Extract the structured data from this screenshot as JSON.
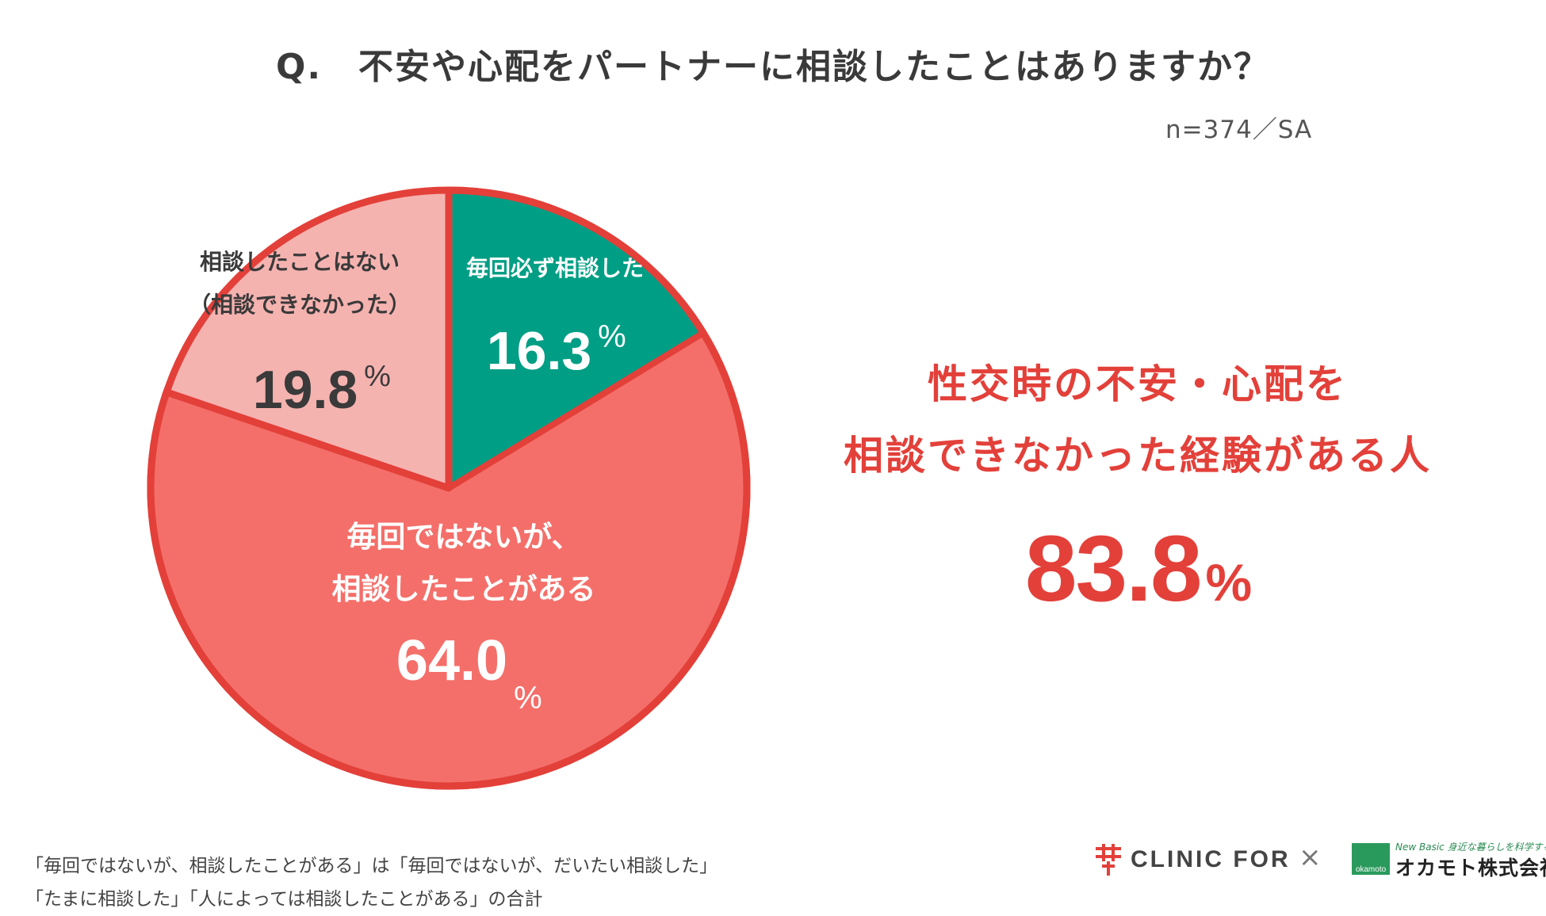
{
  "title": "Q.　不安や心配をパートナーに相談したことはありますか？",
  "sample_note": "n=374／SA",
  "chart_data": {
    "type": "pie",
    "title": "不安や心配をパートナーに相談したことはありますか？",
    "unit": "%",
    "slices": [
      {
        "label_lines": [
          "毎回必ず相談した"
        ],
        "value": 16.3,
        "color": "#009e84",
        "text_color": "#ffffff"
      },
      {
        "label_lines": [
          "毎回ではないが、",
          "相談したことがある"
        ],
        "value": 64.0,
        "color": "#f46f6a",
        "text_color": "#ffffff"
      },
      {
        "label_lines": [
          "相談したことはない",
          "（相談できなかった）"
        ],
        "value": 19.8,
        "color": "#f5b3b0",
        "text_color": "#3a3a3a"
      }
    ],
    "value_labels": [
      "16.3",
      "64.0",
      "19.8"
    ],
    "highlight_outline_color": "#e3403a"
  },
  "highlight": {
    "line1": "性交時の不安・心配を",
    "line2": "相談できなかった経験がある人",
    "value": "83.8",
    "unit": "%"
  },
  "notes": [
    "「毎回ではないが、相談したことがある」は「毎回ではないが、だいたい相談した」",
    "「たまに相談した」「人によっては相談したことがある」の合計"
  ],
  "logos": {
    "clinic_for": "CLINIC FOR",
    "times": "×",
    "okamoto_tagline": "New Basic 身近な暮らしを科学する",
    "okamoto_name": "オカモト株式会社",
    "okamoto_mark": "okamoto"
  }
}
